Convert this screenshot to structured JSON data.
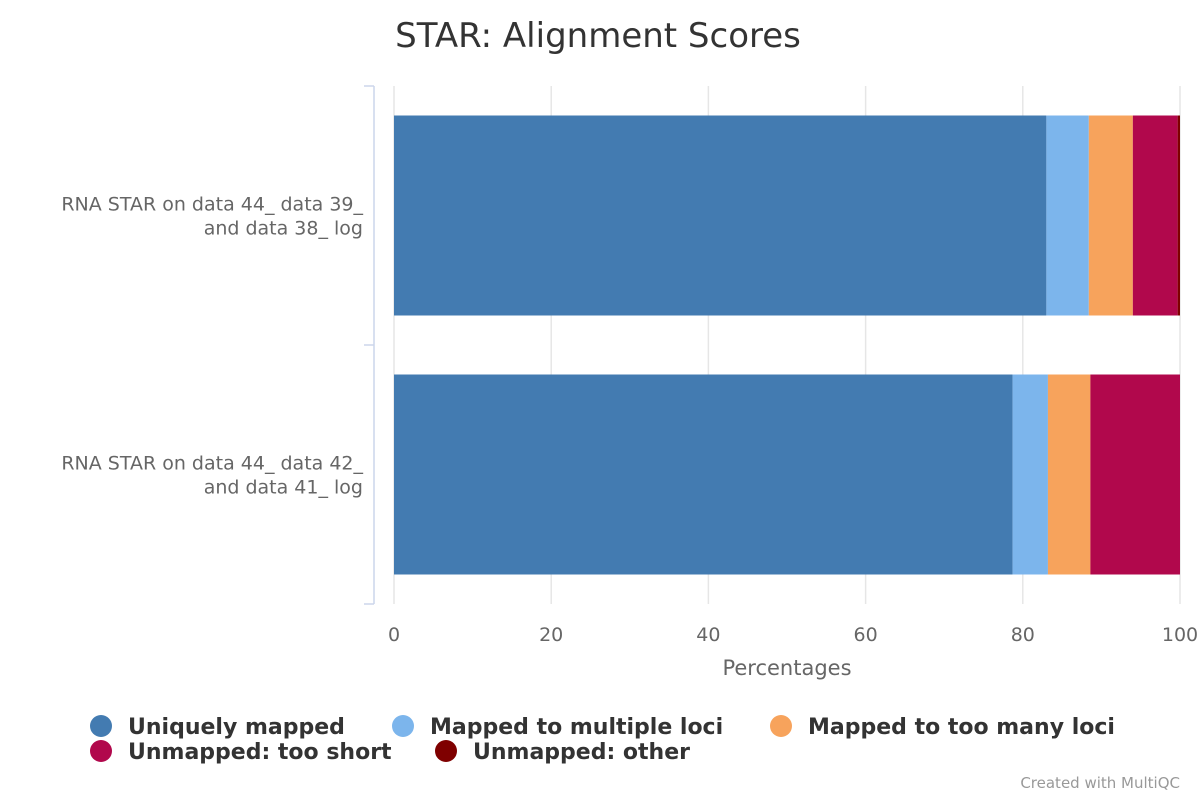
{
  "chart_data": {
    "type": "bar",
    "orientation": "horizontal",
    "stacked": true,
    "title": "STAR: Alignment Scores",
    "xlabel": "Percentages",
    "ylabel": "",
    "xlim": [
      0,
      100
    ],
    "xticks": [
      "0",
      "20",
      "40",
      "60",
      "80",
      "100"
    ],
    "grid": true,
    "legend_position": "bottom",
    "categories": [
      [
        "RNA STAR on data 44_ data 39_",
        "and data 38_ log"
      ],
      [
        "RNA STAR on data 44_ data 42_",
        "and data 41_ log"
      ]
    ],
    "series": [
      {
        "name": "Uniquely mapped",
        "color": "#437bb1",
        "values": [
          83.0,
          78.7
        ]
      },
      {
        "name": "Mapped to multiple loci",
        "color": "#7cb5ec",
        "values": [
          5.4,
          4.5
        ]
      },
      {
        "name": "Mapped to too many loci",
        "color": "#f7a35c",
        "values": [
          5.6,
          5.4
        ]
      },
      {
        "name": "Unmapped: too short",
        "color": "#b1084c",
        "values": [
          5.7,
          11.4
        ]
      },
      {
        "name": "Unmapped: other",
        "color": "#7f0000",
        "values": [
          0.3,
          0.0
        ]
      }
    ],
    "credit": "Created with MultiQC"
  }
}
